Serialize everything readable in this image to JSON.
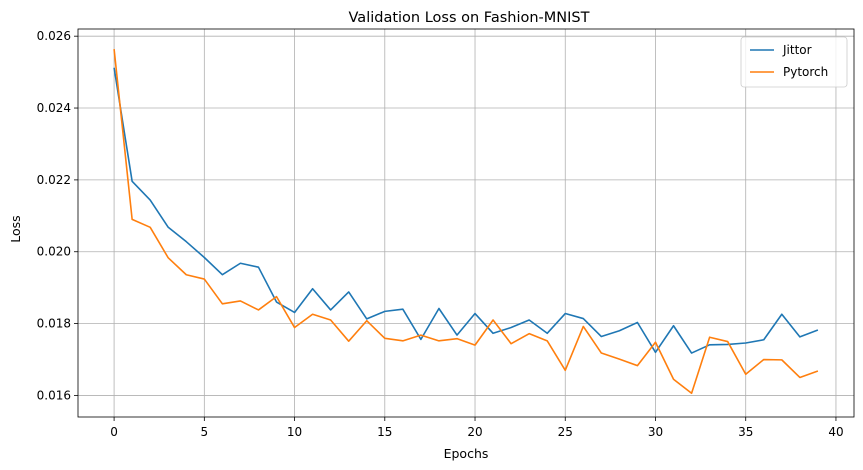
{
  "chart_data": {
    "type": "line",
    "title": "Validation Loss on Fashion-MNIST",
    "xlabel": "Epochs",
    "ylabel": "Loss",
    "xlim": [
      -2,
      41
    ],
    "ylim": [
      0.0154,
      0.0262
    ],
    "xticks": [
      0,
      5,
      10,
      15,
      20,
      25,
      30,
      35,
      40
    ],
    "xtick_labels": [
      "0",
      "5",
      "10",
      "15",
      "20",
      "25",
      "30",
      "35",
      "40"
    ],
    "yticks": [
      0.016,
      0.018,
      0.02,
      0.022,
      0.024,
      0.026
    ],
    "ytick_labels": [
      "0.016",
      "0.018",
      "0.020",
      "0.022",
      "0.024",
      "0.026"
    ],
    "grid": true,
    "legend_position": "top-right",
    "x": [
      0,
      1,
      2,
      3,
      4,
      5,
      6,
      7,
      8,
      9,
      10,
      11,
      12,
      13,
      14,
      15,
      16,
      17,
      18,
      19,
      20,
      21,
      22,
      23,
      24,
      25,
      26,
      27,
      28,
      29,
      30,
      31,
      32,
      33,
      34,
      35,
      36,
      37,
      38,
      39
    ],
    "series": [
      {
        "name": "Jittor",
        "color": "#1f77b4",
        "values": [
          0.02512,
          0.02196,
          0.02144,
          0.02068,
          0.02028,
          0.01984,
          0.01936,
          0.01968,
          0.01957,
          0.0186,
          0.01831,
          0.01897,
          0.01838,
          0.01888,
          0.01813,
          0.01834,
          0.0184,
          0.01756,
          0.01842,
          0.01768,
          0.01828,
          0.01773,
          0.01789,
          0.0181,
          0.01773,
          0.01828,
          0.01814,
          0.01764,
          0.0178,
          0.01803,
          0.0172,
          0.01794,
          0.01718,
          0.01741,
          0.01742,
          0.01746,
          0.01755,
          0.01826,
          0.01763,
          0.01782
        ]
      },
      {
        "name": "Pytorch",
        "color": "#ff7f0e",
        "values": [
          0.02564,
          0.0209,
          0.02068,
          0.01983,
          0.01936,
          0.01924,
          0.01855,
          0.01863,
          0.01838,
          0.01875,
          0.01789,
          0.01826,
          0.0181,
          0.01751,
          0.01808,
          0.01759,
          0.01752,
          0.01768,
          0.01752,
          0.01758,
          0.0174,
          0.0181,
          0.01744,
          0.01772,
          0.01752,
          0.0167,
          0.01792,
          0.01718,
          0.01701,
          0.01683,
          0.01748,
          0.01645,
          0.01606,
          0.01762,
          0.0175,
          0.01659,
          0.017,
          0.01699,
          0.0165,
          0.01668
        ]
      }
    ]
  }
}
